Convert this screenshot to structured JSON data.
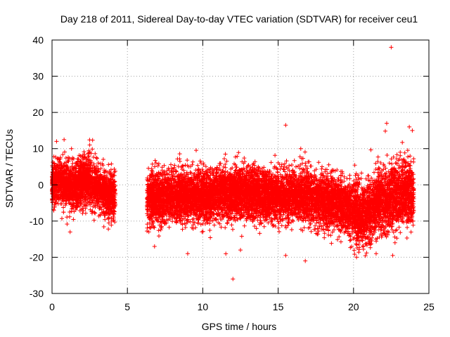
{
  "chart_data": {
    "type": "scatter",
    "title": "Day 218 of 2011, Sidereal Day-to-day VTEC variation (SDTVAR) for receiver ceu1",
    "xlabel": "GPS time / hours",
    "ylabel": "SDTVAR / TECUs",
    "xlim": [
      0,
      25
    ],
    "ylim": [
      -30,
      40
    ],
    "xticks": [
      0,
      5,
      10,
      15,
      20,
      25
    ],
    "yticks": [
      -30,
      -20,
      -10,
      0,
      10,
      20,
      30,
      40
    ],
    "grid": true,
    "marker": "plus",
    "color": "#ff0000",
    "segments": [
      {
        "x_start": 0.0,
        "x_end": 4.2,
        "center": [
          [
            0.0,
            0
          ],
          [
            0.5,
            1
          ],
          [
            1.0,
            0
          ],
          [
            1.5,
            -1
          ],
          [
            2.0,
            1
          ],
          [
            2.5,
            1
          ],
          [
            3.0,
            -1
          ],
          [
            3.5,
            -2
          ],
          [
            4.2,
            -3
          ]
        ],
        "spread": 3.2
      },
      {
        "x_start": 6.3,
        "x_end": 24.0,
        "center": [
          [
            6.3,
            -4
          ],
          [
            8.0,
            -3
          ],
          [
            10.0,
            -3
          ],
          [
            12.0,
            -2
          ],
          [
            14.0,
            -3
          ],
          [
            16.0,
            -3
          ],
          [
            18.0,
            -4
          ],
          [
            19.0,
            -5
          ],
          [
            20.0,
            -7
          ],
          [
            20.5,
            -9
          ],
          [
            21.0,
            -8
          ],
          [
            21.5,
            -5
          ],
          [
            22.0,
            -4
          ],
          [
            23.0,
            -3
          ],
          [
            24.0,
            -2
          ]
        ],
        "spread": 3.5
      }
    ],
    "outliers": [
      {
        "x": 22.5,
        "y": 38
      },
      {
        "x": 22.2,
        "y": 17
      },
      {
        "x": 15.5,
        "y": 16.5
      },
      {
        "x": 23.7,
        "y": 16
      },
      {
        "x": 23.9,
        "y": 15
      },
      {
        "x": 0.8,
        "y": 12.5
      },
      {
        "x": 0.3,
        "y": 12
      },
      {
        "x": 2.5,
        "y": 11
      },
      {
        "x": 11.5,
        "y": 8.5
      },
      {
        "x": 16.5,
        "y": 10
      },
      {
        "x": 12.0,
        "y": -26
      },
      {
        "x": 16.8,
        "y": -21
      },
      {
        "x": 9.0,
        "y": -19
      },
      {
        "x": 15.5,
        "y": -19.5
      },
      {
        "x": 22.6,
        "y": -19.5
      },
      {
        "x": 1.2,
        "y": -13
      },
      {
        "x": 6.8,
        "y": -17
      },
      {
        "x": 12.5,
        "y": -18
      },
      {
        "x": 20.2,
        "y": -20
      },
      {
        "x": 21.5,
        "y": -19
      }
    ]
  }
}
